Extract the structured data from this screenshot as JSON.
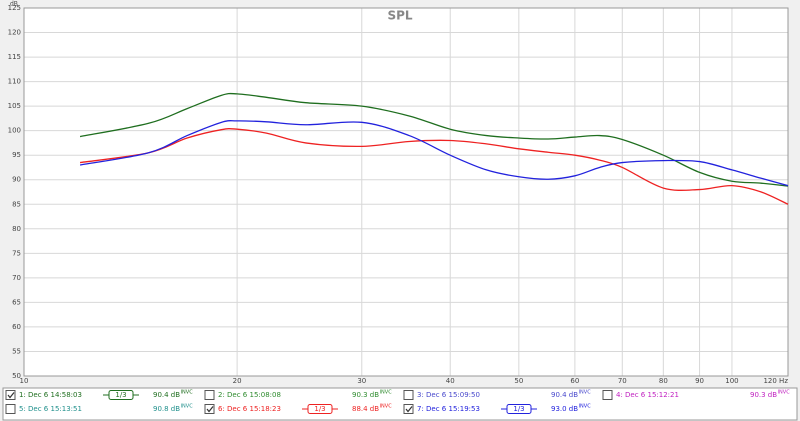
{
  "chart_data": {
    "type": "line",
    "title": "SPL",
    "y_label": "dB",
    "x_scale": "log",
    "grid": true,
    "xlim": [
      10,
      120
    ],
    "ylim": [
      50,
      125
    ],
    "xticks": [
      10,
      20,
      30,
      40,
      50,
      60,
      70,
      80,
      90,
      100,
      {
        "value": 120,
        "label": "120 Hz"
      }
    ],
    "yticks": [
      50,
      55,
      60,
      65,
      70,
      75,
      80,
      85,
      90,
      95,
      100,
      105,
      110,
      115,
      120,
      125
    ],
    "x": [
      12,
      15,
      17,
      19,
      20,
      22,
      25,
      30,
      35,
      40,
      45,
      50,
      55,
      60,
      65,
      70,
      80,
      90,
      100,
      110,
      120
    ],
    "series": [
      {
        "name": "1: Dec 6 14:58:03",
        "color": "#1f6e1f",
        "checked": true,
        "smoothing": "1/3",
        "level": "90.4 dB",
        "level_sup": "INVC",
        "values": [
          98.8,
          101.5,
          104.5,
          107.2,
          107.5,
          106.8,
          105.7,
          105,
          103,
          100.3,
          99,
          98.5,
          98.3,
          98.7,
          99,
          98.2,
          95,
          91.5,
          89.7,
          89.3,
          88.7
        ]
      },
      {
        "name": "6: Dec 6 15:18:23",
        "color": "#ee2222",
        "checked": true,
        "smoothing": "1/3",
        "level": "88.4 dB",
        "level_sup": "INVC",
        "values": [
          93.5,
          95.5,
          98.5,
          100.2,
          100.3,
          99.5,
          97.5,
          96.8,
          97.8,
          98,
          97.3,
          96.3,
          95.6,
          95,
          94,
          92.5,
          88.3,
          88,
          88.8,
          87.5,
          85
        ]
      },
      {
        "name": "7: Dec 6 15:19:53",
        "color": "#2222dd",
        "checked": true,
        "smoothing": "1/3",
        "level": "93.0 dB",
        "level_sup": "INVC",
        "values": [
          93,
          95.5,
          99,
          101.7,
          102,
          101.8,
          101.2,
          101.7,
          99,
          95,
          92,
          90.6,
          90.1,
          90.8,
          92.5,
          93.5,
          93.9,
          93.7,
          92,
          90.3,
          88.8
        ]
      }
    ],
    "other_measurements": [
      {
        "name": "2: Dec 6 15:08:08",
        "color": "#2e8b2e",
        "checked": false,
        "level": "90.3 dB",
        "level_sup": "INVC"
      },
      {
        "name": "3: Dec 6 15:09:50",
        "color": "#4848cc",
        "checked": false,
        "level": "90.4 dB",
        "level_sup": "INVC"
      },
      {
        "name": "4: Dec 6 15:12:21",
        "color": "#c020c0",
        "checked": false,
        "level": "90.3 dB",
        "level_sup": "INVC"
      },
      {
        "name": "5: Dec 6 15:13:51",
        "color": "#20908c",
        "checked": false,
        "level": "90.8 dB",
        "level_sup": "INVC"
      }
    ]
  }
}
